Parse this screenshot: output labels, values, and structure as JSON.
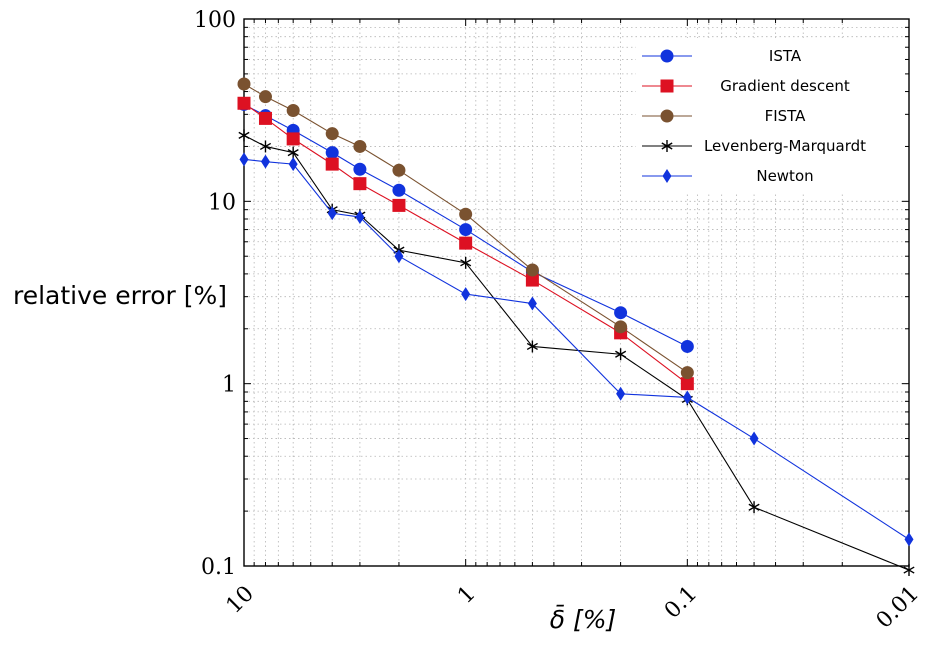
{
  "chart_data": {
    "type": "line",
    "xscale": "log",
    "yscale": "log",
    "x_reversed": true,
    "xlim": [
      10,
      0.01
    ],
    "ylim": [
      0.1,
      100
    ],
    "grid": true,
    "ylabel": "relative error [%]",
    "xlabel": "δ̄ [%]",
    "x_ticks": [
      10,
      1,
      0.1,
      0.01
    ],
    "x_tick_labels": [
      "10",
      "1",
      "0.1",
      "0.01"
    ],
    "y_ticks": [
      0.1,
      1,
      10,
      100
    ],
    "y_tick_labels": [
      "0.1",
      "1",
      "10",
      "100"
    ],
    "legend_position": "top-right",
    "series": [
      {
        "name": "ISTA",
        "color": "#1133dd",
        "marker": "circle",
        "x": [
          10,
          8,
          6,
          4,
          3,
          2,
          1,
          0.5,
          0.2,
          0.1
        ],
        "y": [
          34,
          29.5,
          24.5,
          18.5,
          15,
          11.5,
          7,
          4.1,
          2.45,
          1.6
        ]
      },
      {
        "name": "Gradient descent",
        "color": "#dd1122",
        "marker": "square",
        "x": [
          10,
          8,
          6,
          4,
          3,
          2,
          1,
          0.5,
          0.2,
          0.1
        ],
        "y": [
          34.5,
          28.5,
          22,
          16,
          12.5,
          9.5,
          5.9,
          3.7,
          1.9,
          1.0
        ]
      },
      {
        "name": "FISTA",
        "color": "#7a5230",
        "marker": "circle",
        "x": [
          10,
          8,
          6,
          4,
          3,
          2,
          1,
          0.5,
          0.2,
          0.1
        ],
        "y": [
          44,
          37.5,
          31.5,
          23.5,
          20,
          14.8,
          8.5,
          4.2,
          2.05,
          1.15
        ]
      },
      {
        "name": "Levenberg-Marquardt",
        "color": "#000000",
        "marker": "star",
        "x": [
          10,
          8,
          6,
          4,
          3,
          2,
          1,
          0.5,
          0.2,
          0.1,
          0.05,
          0.01
        ],
        "y": [
          23,
          20,
          18.5,
          9,
          8.4,
          5.4,
          4.6,
          1.6,
          1.45,
          0.82,
          0.21,
          0.095
        ]
      },
      {
        "name": "Newton",
        "color": "#1133dd",
        "marker": "diamond",
        "x": [
          10,
          8,
          6,
          4,
          3,
          2,
          1,
          0.5,
          0.2,
          0.1,
          0.05,
          0.01
        ],
        "y": [
          17,
          16.5,
          16,
          8.6,
          8.2,
          5,
          3.1,
          2.75,
          0.88,
          0.84,
          0.5,
          0.14
        ]
      }
    ]
  }
}
